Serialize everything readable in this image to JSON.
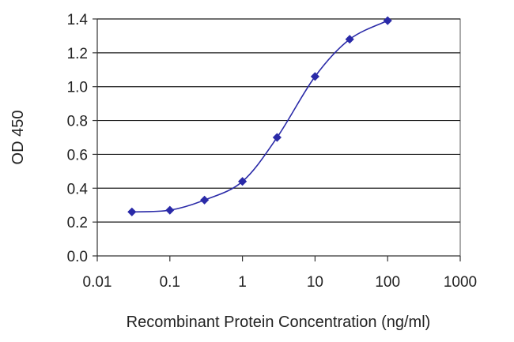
{
  "chart_data": {
    "type": "line",
    "title": "",
    "xlabel": "Recombinant Protein Concentration (ng/ml)",
    "ylabel": "OD 450",
    "x_scale": "log",
    "xlim": [
      0.01,
      1000
    ],
    "ylim": [
      0.0,
      1.4
    ],
    "x_ticks": [
      "0.01",
      "0.1",
      "1",
      "10",
      "100",
      "1000"
    ],
    "y_ticks": [
      "0.0",
      "0.2",
      "0.4",
      "0.6",
      "0.8",
      "1.0",
      "1.2",
      "1.4"
    ],
    "grid": "horizontal",
    "legend": "none",
    "series": [
      {
        "color": "#2a2aa8",
        "marker": "diamond",
        "x": [
          0.03,
          0.1,
          0.3,
          1,
          3,
          10,
          30,
          100
        ],
        "y": [
          0.26,
          0.27,
          0.33,
          0.44,
          0.7,
          1.06,
          1.28,
          1.39
        ]
      }
    ]
  }
}
